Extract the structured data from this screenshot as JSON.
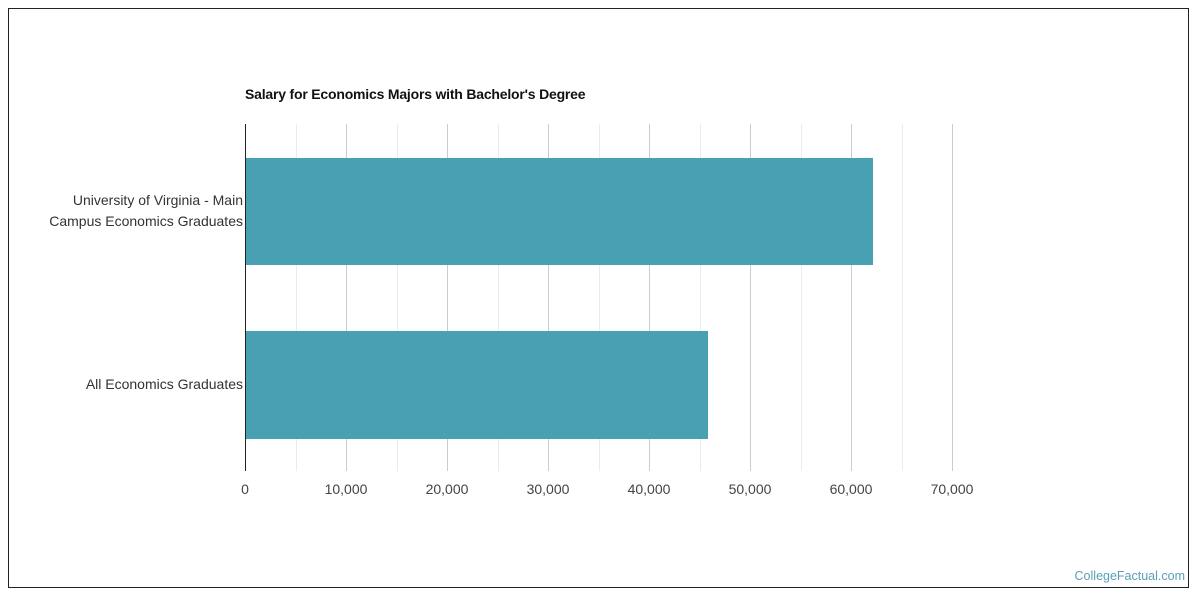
{
  "chart_data": {
    "type": "bar",
    "orientation": "horizontal",
    "title": "Salary for Economics Majors with Bachelor's Degree",
    "categories": [
      "University of Virginia - Main Campus Economics Graduates",
      "All Economics Graduates"
    ],
    "category_lines": [
      [
        "University of Virginia - Main",
        "Campus Economics Graduates"
      ],
      [
        "All Economics Graduates"
      ]
    ],
    "values": [
      62200,
      45800
    ],
    "xlabel": "",
    "ylabel": "",
    "xlim": [
      0,
      70000
    ],
    "x_ticks": [
      0,
      10000,
      20000,
      30000,
      40000,
      50000,
      60000,
      70000
    ],
    "x_tick_labels": [
      "0",
      "10,000",
      "20,000",
      "30,000",
      "40,000",
      "50,000",
      "60,000",
      "70,000"
    ],
    "grid": true,
    "legend": "none",
    "bar_color": "#4aa0b3"
  },
  "credit": "CollegeFactual.com"
}
